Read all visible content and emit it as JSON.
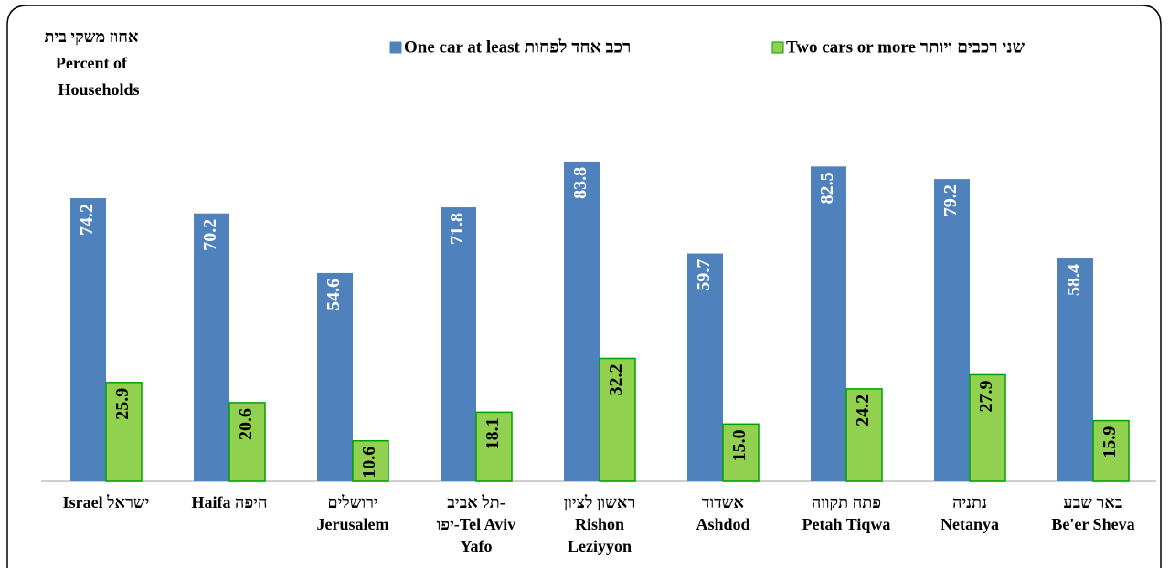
{
  "chart_data": {
    "type": "bar",
    "y_label": [
      "אחוז משקי בית",
      "Percent of",
      "Households"
    ],
    "categories": [
      [
        "Israel ישראל"
      ],
      [
        "Haifa חיפה"
      ],
      [
        "ירושלים",
        "Jerusalem"
      ],
      [
        "תל אביב-",
        "יפו-Tel Aviv",
        "Yafo"
      ],
      [
        "ראשון לציון",
        "Rishon",
        "Leziyyon"
      ],
      [
        "אשדוד",
        "Ashdod"
      ],
      [
        "פתח תקווה",
        "Petah Tiqwa"
      ],
      [
        "נתניה",
        "Netanya"
      ],
      [
        "באר שבע",
        "Be'er Sheva"
      ]
    ],
    "series": [
      {
        "name": "One car at least רכב אחד לפחות",
        "color": "#4f81bd",
        "values": [
          74.2,
          70.2,
          54.6,
          71.8,
          83.8,
          59.7,
          82.5,
          79.2,
          58.4
        ],
        "value_labels": [
          "74.2",
          "70.2",
          "54.6",
          "71.8",
          "83.8",
          "59.7",
          "82.5",
          "79.2",
          "58.4"
        ]
      },
      {
        "name": "Two cars or more שני רכבים ויותר",
        "color": "#92d050",
        "values": [
          25.9,
          20.6,
          10.6,
          18.1,
          32.2,
          15.0,
          24.2,
          27.9,
          15.9
        ],
        "value_labels": [
          "25.9",
          "20.6",
          "10.6",
          "18.1",
          "32.2",
          "15.0",
          "24.2",
          "27.9",
          "15.9"
        ]
      }
    ],
    "ylim": [
      0,
      90
    ]
  }
}
